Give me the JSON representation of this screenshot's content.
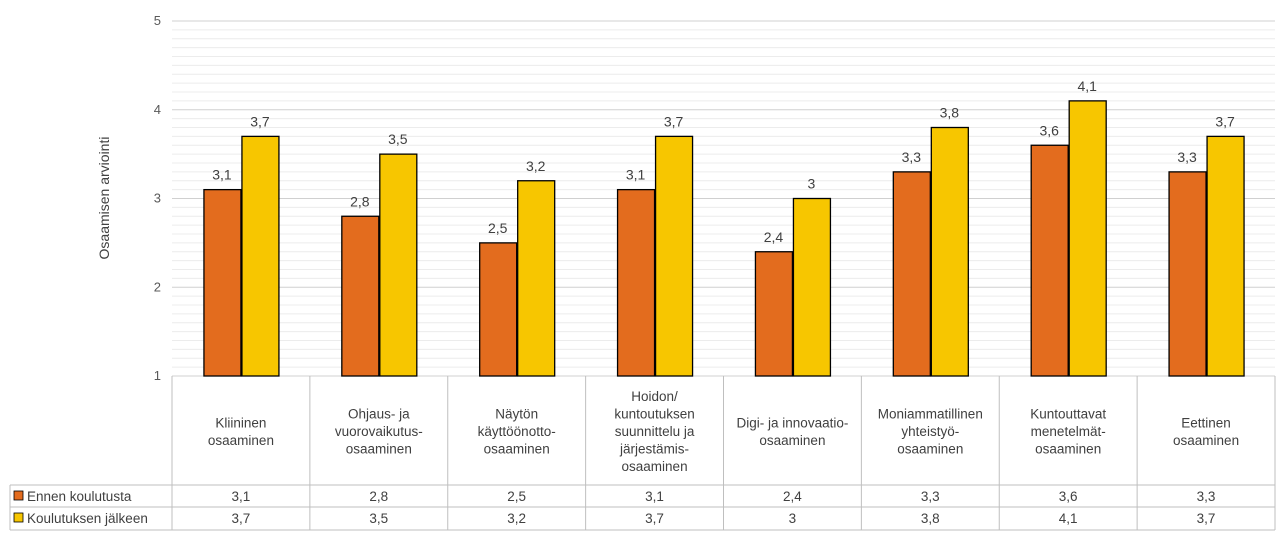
{
  "chart_data": {
    "type": "bar",
    "ylabel": "Osaamisen arviointi",
    "ylim": [
      1,
      5
    ],
    "yticks": [
      "1",
      "2",
      "3",
      "4",
      "5"
    ],
    "grid": true,
    "legend_placement": "data-table-left",
    "categories": [
      [
        "Kliininen",
        "osaaminen"
      ],
      [
        "Ohjaus- ja",
        "vuorovaikutus-",
        "osaaminen"
      ],
      [
        "Näytön",
        "käyttöönotto-",
        "osaaminen"
      ],
      [
        "Hoidon/",
        "kuntoutuksen",
        "suunnittelu ja",
        "järjestämis-",
        "osaaminen"
      ],
      [
        "Digi- ja innovaatio-",
        "osaaminen"
      ],
      [
        "Moniammatillinen",
        "yhteistyö-",
        "osaaminen"
      ],
      [
        "Kuntouttavat",
        "menetelmät-",
        "osaaminen"
      ],
      [
        "Eettinen",
        "osaaminen"
      ]
    ],
    "series": [
      {
        "name": "Ennen koulutusta",
        "color": "#e36c1e",
        "values": [
          3.1,
          2.8,
          2.5,
          3.1,
          2.4,
          3.3,
          3.6,
          3.3
        ],
        "labels": [
          "3,1",
          "2,8",
          "2,5",
          "3,1",
          "2,4",
          "3,3",
          "3,6",
          "3,3"
        ]
      },
      {
        "name": "Koulutuksen jälkeen",
        "color": "#f7c600",
        "values": [
          3.7,
          3.5,
          3.2,
          3.7,
          3.0,
          3.8,
          4.1,
          3.7
        ],
        "labels": [
          "3,7",
          "3,5",
          "3,2",
          "3,7",
          "3",
          "3,8",
          "4,1",
          "3,7"
        ]
      }
    ]
  }
}
